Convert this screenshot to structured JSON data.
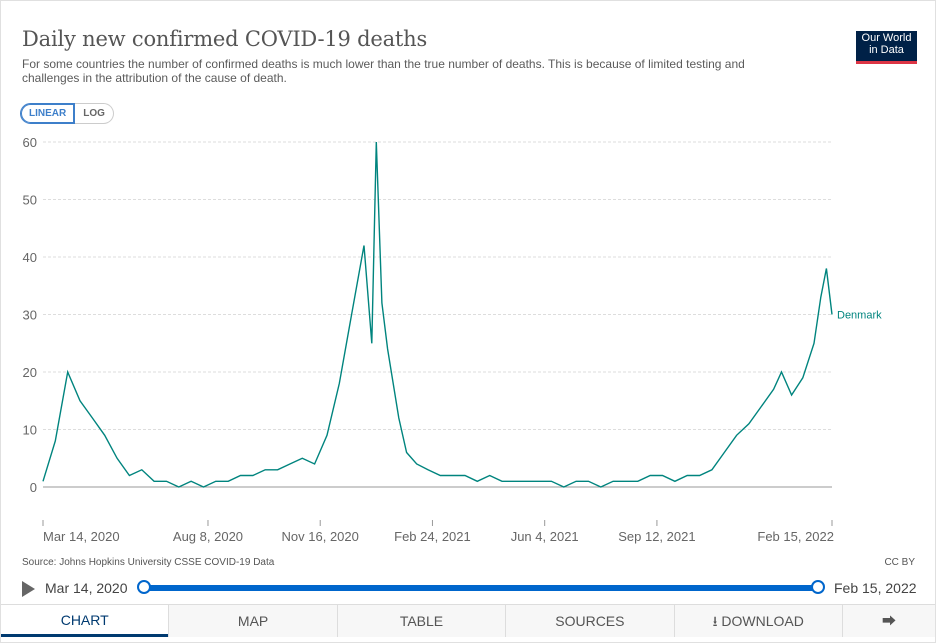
{
  "header": {
    "title": "Daily new confirmed COVID-19 deaths",
    "subtitle": "For some countries the number of confirmed deaths is much lower than the true number of deaths. This is because of limited testing and challenges in the attribution of the cause of death.",
    "logo_line1": "Our World",
    "logo_line2": "in Data"
  },
  "scale_toggle": {
    "linear": "LINEAR",
    "log": "LOG",
    "selected": "LINEAR"
  },
  "chart_data": {
    "type": "line",
    "series": [
      {
        "name": "Denmark",
        "color": "#00847e",
        "x": [
          "2020-03-14",
          "2020-03-25",
          "2020-04-05",
          "2020-04-16",
          "2020-04-27",
          "2020-05-08",
          "2020-05-19",
          "2020-05-30",
          "2020-06-10",
          "2020-06-21",
          "2020-07-02",
          "2020-07-13",
          "2020-07-24",
          "2020-08-04",
          "2020-08-15",
          "2020-08-26",
          "2020-09-06",
          "2020-09-17",
          "2020-09-28",
          "2020-10-09",
          "2020-10-20",
          "2020-10-31",
          "2020-11-11",
          "2020-11-22",
          "2020-12-03",
          "2020-12-14",
          "2020-12-25",
          "2021-01-01",
          "2021-01-05",
          "2021-01-10",
          "2021-01-15",
          "2021-01-20",
          "2021-01-25",
          "2021-02-01",
          "2021-02-10",
          "2021-02-20",
          "2021-03-03",
          "2021-03-14",
          "2021-03-25",
          "2021-04-05",
          "2021-04-16",
          "2021-04-27",
          "2021-05-08",
          "2021-05-19",
          "2021-05-30",
          "2021-06-10",
          "2021-06-21",
          "2021-07-02",
          "2021-07-13",
          "2021-07-24",
          "2021-08-04",
          "2021-08-15",
          "2021-08-26",
          "2021-09-06",
          "2021-09-17",
          "2021-09-28",
          "2021-10-09",
          "2021-10-20",
          "2021-10-31",
          "2021-11-11",
          "2021-11-22",
          "2021-12-03",
          "2021-12-14",
          "2021-12-25",
          "2022-01-01",
          "2022-01-10",
          "2022-01-20",
          "2022-01-30",
          "2022-02-05",
          "2022-02-10",
          "2022-02-15"
        ],
        "values": [
          1,
          8,
          20,
          15,
          12,
          9,
          5,
          2,
          3,
          1,
          1,
          0,
          1,
          0,
          1,
          1,
          2,
          2,
          3,
          3,
          4,
          5,
          4,
          9,
          18,
          30,
          42,
          25,
          60,
          32,
          24,
          18,
          12,
          6,
          4,
          3,
          2,
          2,
          2,
          1,
          2,
          1,
          1,
          1,
          1,
          1,
          0,
          1,
          1,
          0,
          1,
          1,
          1,
          2,
          2,
          1,
          2,
          2,
          3,
          6,
          9,
          11,
          14,
          17,
          20,
          16,
          19,
          25,
          33,
          38,
          30
        ]
      }
    ],
    "xlabel": "",
    "ylabel": "",
    "ylim": [
      0,
      60
    ],
    "yticks": [
      "0",
      "10",
      "20",
      "30",
      "40",
      "50",
      "60"
    ],
    "xtick_labels": [
      "Mar 14, 2020",
      "Aug 8, 2020",
      "Nov 16, 2020",
      "Feb 24, 2021",
      "Jun 4, 2021",
      "Sep 12, 2021",
      "Feb 15, 2022"
    ],
    "xtick_dates": [
      "2020-03-14",
      "2020-08-08",
      "2020-11-16",
      "2021-02-24",
      "2021-06-04",
      "2021-09-12",
      "2022-02-15"
    ],
    "grid": true,
    "legend": "end-label"
  },
  "footer": {
    "source": "Source: Johns Hopkins University CSSE COVID-19 Data",
    "license": "CC BY"
  },
  "timeline": {
    "start_label": "Mar 14, 2020",
    "end_label": "Feb 15, 2022",
    "start_fraction": 0,
    "end_fraction": 1
  },
  "tabs": {
    "chart": "CHART",
    "map": "MAP",
    "table": "TABLE",
    "sources": "SOURCES",
    "download": "DOWNLOAD"
  }
}
